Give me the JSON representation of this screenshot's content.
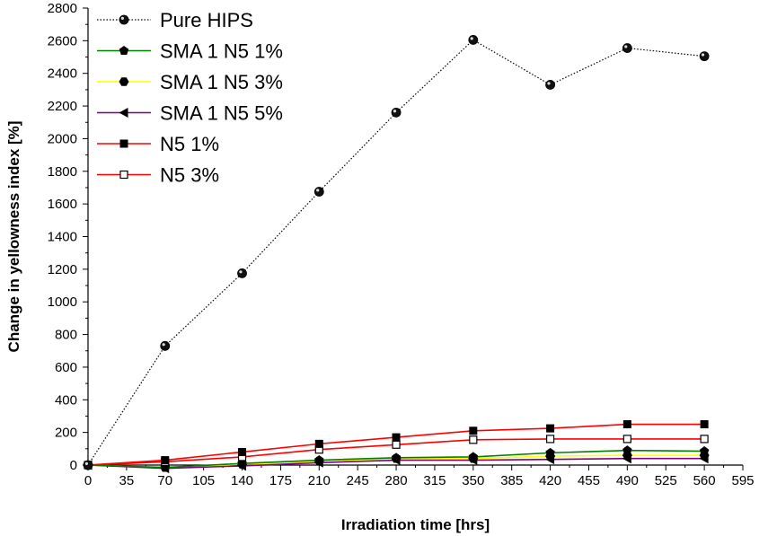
{
  "chart_data": {
    "type": "line",
    "title": "",
    "xlabel": "Irradiation time [hrs]",
    "ylabel": "Change in yellowness index [%]",
    "xlim": [
      0,
      595
    ],
    "ylim": [
      0,
      2800
    ],
    "xticks": [
      "0",
      "35",
      "70",
      "105",
      "140",
      "175",
      "210",
      "245",
      "280",
      "315",
      "350",
      "385",
      "420",
      "455",
      "490",
      "525",
      "560",
      "595"
    ],
    "yticks": [
      "0",
      "200",
      "400",
      "600",
      "800",
      "1000",
      "1200",
      "1400",
      "1600",
      "1800",
      "2000",
      "2200",
      "2400",
      "2600",
      "2800"
    ],
    "grid": false,
    "legend_position": "top-left",
    "x": [
      0,
      70,
      140,
      210,
      280,
      350,
      420,
      490,
      560
    ],
    "series": [
      {
        "name": "Pure HIPS",
        "color": "#000000",
        "line_style": "dotted",
        "marker": "sphere",
        "values": [
          0,
          730,
          1175,
          1675,
          2160,
          2605,
          2330,
          2555,
          2505
        ]
      },
      {
        "name": "SMA 1 N5 1%",
        "color": "#008000",
        "line_style": "solid",
        "marker": "pentagon",
        "values": [
          0,
          -15,
          10,
          30,
          45,
          50,
          75,
          90,
          85
        ]
      },
      {
        "name": "SMA 1 N5 3%",
        "color": "#ffff00",
        "line_style": "solid",
        "marker": "hexagon",
        "values": [
          0,
          -15,
          5,
          25,
          40,
          40,
          55,
          60,
          60
        ]
      },
      {
        "name": "SMA 1 N5 5%",
        "color": "#800080",
        "line_style": "solid",
        "marker": "triangle-left",
        "values": [
          0,
          -20,
          -5,
          15,
          30,
          30,
          35,
          40,
          40
        ]
      },
      {
        "name": "N5 1%",
        "color": "#ff0000",
        "line_style": "solid",
        "marker": "square-filled",
        "values": [
          0,
          30,
          80,
          130,
          170,
          210,
          225,
          250,
          250
        ]
      },
      {
        "name": "N5 3%",
        "color": "#ff0000",
        "line_style": "solid",
        "marker": "square-open",
        "values": [
          0,
          20,
          50,
          95,
          125,
          155,
          160,
          160,
          160
        ]
      }
    ]
  }
}
